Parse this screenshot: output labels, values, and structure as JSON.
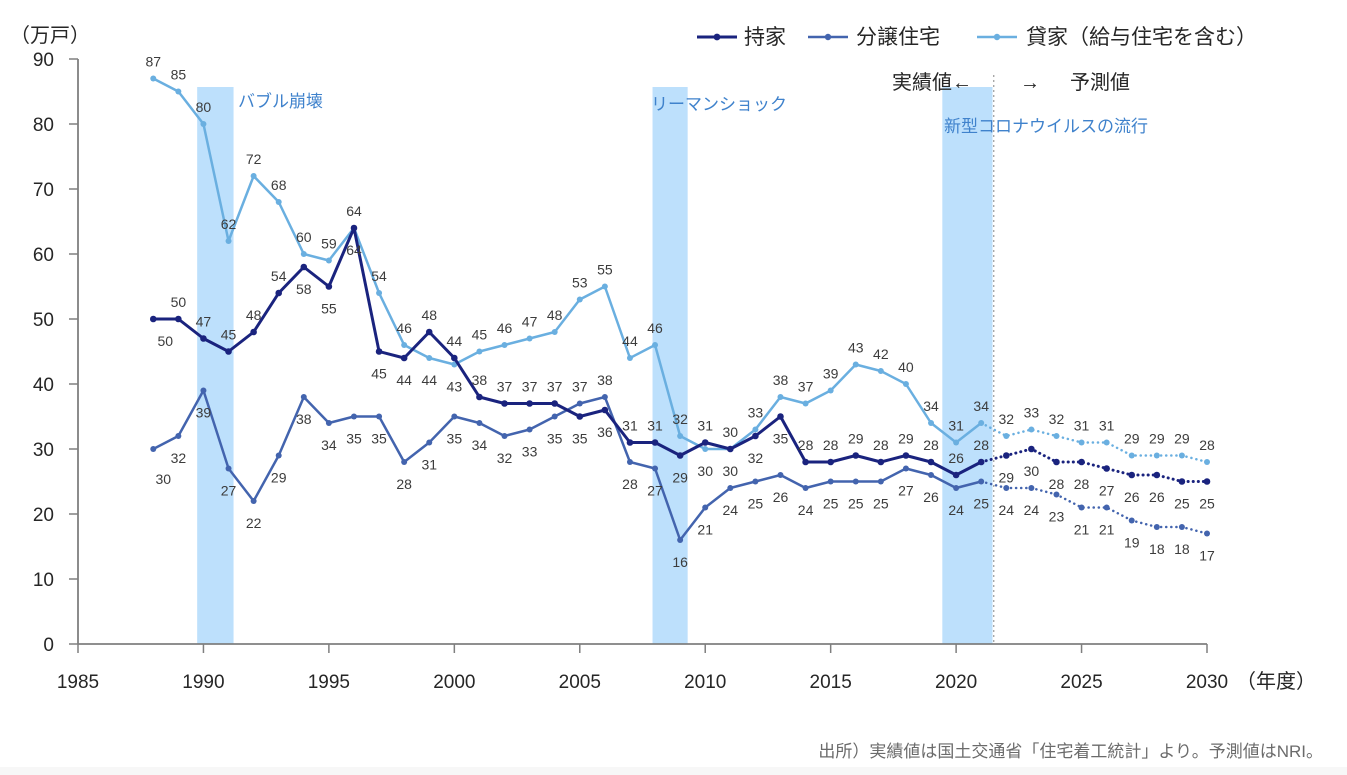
{
  "chart_data": {
    "type": "line",
    "title": "",
    "ylabel": "（万戸）",
    "xlabel": "（年度）",
    "xlim": [
      1985,
      2030
    ],
    "ylim": [
      0,
      90
    ],
    "xticks": [
      1985,
      1990,
      1995,
      2000,
      2005,
      2010,
      2015,
      2020,
      2025,
      2030
    ],
    "yticks": [
      0,
      10,
      20,
      30,
      40,
      50,
      60,
      70,
      80,
      90
    ],
    "grid": false,
    "legend_position": "top-right",
    "x": [
      1988,
      1989,
      1990,
      1991,
      1992,
      1993,
      1994,
      1995,
      1996,
      1997,
      1998,
      1999,
      2000,
      2001,
      2002,
      2003,
      2004,
      2005,
      2006,
      2007,
      2008,
      2009,
      2010,
      2011,
      2012,
      2013,
      2014,
      2015,
      2016,
      2017,
      2018,
      2019,
      2020,
      2021,
      2022,
      2023,
      2024,
      2025,
      2026,
      2027,
      2028,
      2029,
      2030
    ],
    "actual_start_year": 1988,
    "actual_end_year": 2021,
    "forecast_years": [
      2022,
      2023,
      2024,
      2025,
      2026,
      2027,
      2028,
      2029,
      2030
    ],
    "forecast_divider": 2021.5,
    "divider_labels": {
      "actual": "実績値←",
      "arrow": "→",
      "forecast": "予測値"
    },
    "series": [
      {
        "key": "owner-occupied",
        "name": "持家",
        "color": "#1a237e",
        "actual": [
          50,
          50,
          47,
          45,
          48,
          54,
          58,
          55,
          64,
          45,
          44,
          48,
          44,
          38,
          37,
          37,
          37,
          35,
          36,
          31,
          31,
          29,
          31,
          30,
          32,
          35,
          28,
          28,
          29,
          28,
          29,
          28,
          26,
          28
        ],
        "forecast": [
          29,
          30,
          28,
          28,
          27,
          26,
          26,
          25,
          25
        ]
      },
      {
        "key": "for-sale",
        "name": "分譲住宅",
        "color": "#4364ae",
        "actual": [
          30,
          32,
          39,
          27,
          22,
          29,
          38,
          34,
          35,
          35,
          28,
          31,
          35,
          34,
          32,
          33,
          35,
          37,
          38,
          28,
          27,
          16,
          21,
          24,
          25,
          26,
          24,
          25,
          25,
          25,
          27,
          26,
          24,
          25
        ],
        "forecast": [
          24,
          24,
          23,
          21,
          21,
          19,
          18,
          18,
          17
        ]
      },
      {
        "key": "rental",
        "name": "貸家（給与住宅を含む）",
        "color": "#6aafe0",
        "actual": [
          87,
          85,
          80,
          62,
          72,
          68,
          60,
          59,
          64,
          54,
          46,
          44,
          43,
          45,
          46,
          47,
          48,
          53,
          55,
          44,
          46,
          32,
          30,
          30,
          33,
          38,
          37,
          39,
          43,
          42,
          40,
          34,
          31,
          34
        ],
        "forecast": [
          32,
          33,
          32,
          31,
          31,
          29,
          29,
          29,
          28
        ]
      }
    ],
    "annotations": [
      {
        "label": "バブル崩壊",
        "start": 1989.75,
        "end": 1991.2
      },
      {
        "label": "リーマンショック",
        "start": 2007.9,
        "end": 2009.3
      },
      {
        "label": "新型コロナウイルスの流行",
        "start": 2019.45,
        "end": 2021.45
      }
    ],
    "colors": {
      "band": "#bde0fc",
      "annotation_text": "#3f82cc",
      "axis": "#7f7f7f",
      "divider": "#9a9a9a"
    }
  },
  "source": "出所）実績値は国土交通省「住宅着工統計」より。予測値はNRI。"
}
